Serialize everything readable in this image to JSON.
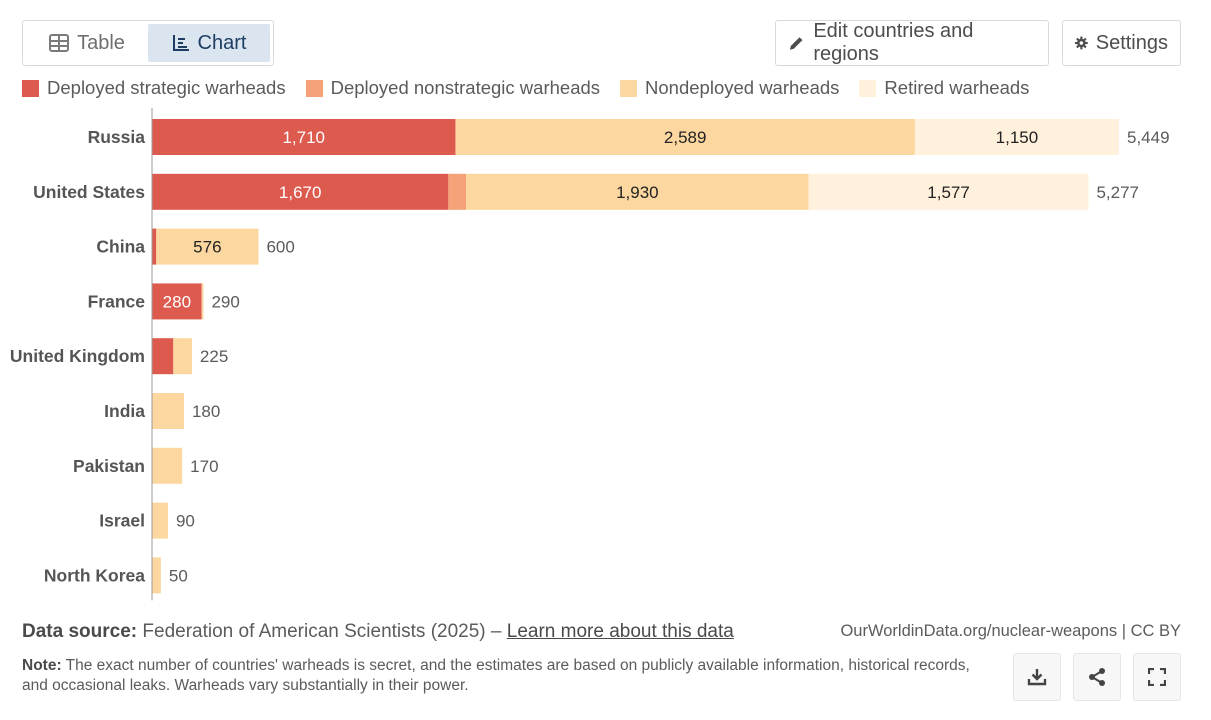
{
  "tabs": [
    {
      "label": "Table",
      "icon": "table-icon",
      "active": false
    },
    {
      "label": "Chart",
      "icon": "chart-icon",
      "active": true
    }
  ],
  "toolbar": {
    "edit_label": "Edit countries and regions",
    "settings_label": "Settings"
  },
  "legend": [
    {
      "label": "Deployed strategic warheads",
      "color": "#dd5a4f"
    },
    {
      "label": "Deployed nonstrategic warheads",
      "color": "#f6a278"
    },
    {
      "label": "Nondeployed warheads",
      "color": "#fcd7a0"
    },
    {
      "label": "Retired warheads",
      "color": "#fff1dc"
    }
  ],
  "chart_data": {
    "type": "bar",
    "orientation": "horizontal",
    "stacked": true,
    "categories": [
      "Russia",
      "United States",
      "China",
      "France",
      "United Kingdom",
      "India",
      "Pakistan",
      "Israel",
      "North Korea"
    ],
    "series": [
      {
        "name": "Deployed strategic warheads",
        "color": "#dd5a4f",
        "label_color": "#ffffff",
        "values": [
          1710,
          1670,
          24,
          280,
          120,
          0,
          0,
          0,
          0
        ]
      },
      {
        "name": "Deployed nonstrategic warheads",
        "color": "#f6a278",
        "label_color": "#222222",
        "values": [
          0,
          100,
          0,
          0,
          0,
          0,
          0,
          0,
          0
        ]
      },
      {
        "name": "Nondeployed warheads",
        "color": "#fcd7a0",
        "label_color": "#222222",
        "values": [
          2589,
          1930,
          576,
          10,
          105,
          180,
          170,
          90,
          50
        ]
      },
      {
        "name": "Retired warheads",
        "color": "#fff1dc",
        "label_color": "#222222",
        "values": [
          1150,
          1577,
          0,
          0,
          0,
          0,
          0,
          0,
          0
        ]
      }
    ],
    "data_labels": [
      [
        "1,710",
        "",
        "2,589",
        "1,150"
      ],
      [
        "1,670",
        "",
        "1,930",
        "1,577"
      ],
      [
        "",
        "",
        "576",
        ""
      ],
      [
        "280",
        "",
        "",
        ""
      ],
      [
        "",
        "",
        "",
        ""
      ],
      [
        "",
        "",
        "",
        ""
      ],
      [
        "",
        "",
        "",
        ""
      ],
      [
        "",
        "",
        "",
        ""
      ],
      [
        "",
        "",
        "",
        ""
      ]
    ],
    "totals": [
      "5,449",
      "5,277",
      "600",
      "290",
      "225",
      "180",
      "170",
      "90",
      "50"
    ],
    "total_values": [
      5449,
      5277,
      600,
      290,
      225,
      180,
      170,
      90,
      50
    ],
    "xlim": [
      0,
      5449
    ]
  },
  "footer": {
    "source_label": "Data source:",
    "source_text": "Federation of American Scientists (2025) –",
    "source_link": "Learn more about this data",
    "url": "OurWorldinData.org/nuclear-weapons | CC BY",
    "note_label": "Note:",
    "note_text": "The exact number of countries' warheads is secret, and the estimates are based on publicly available information, historical records, and occasional leaks. Warheads vary substantially in their power."
  },
  "actions": [
    {
      "icon": "download-icon"
    },
    {
      "icon": "share-icon"
    },
    {
      "icon": "fullscreen-icon"
    }
  ]
}
